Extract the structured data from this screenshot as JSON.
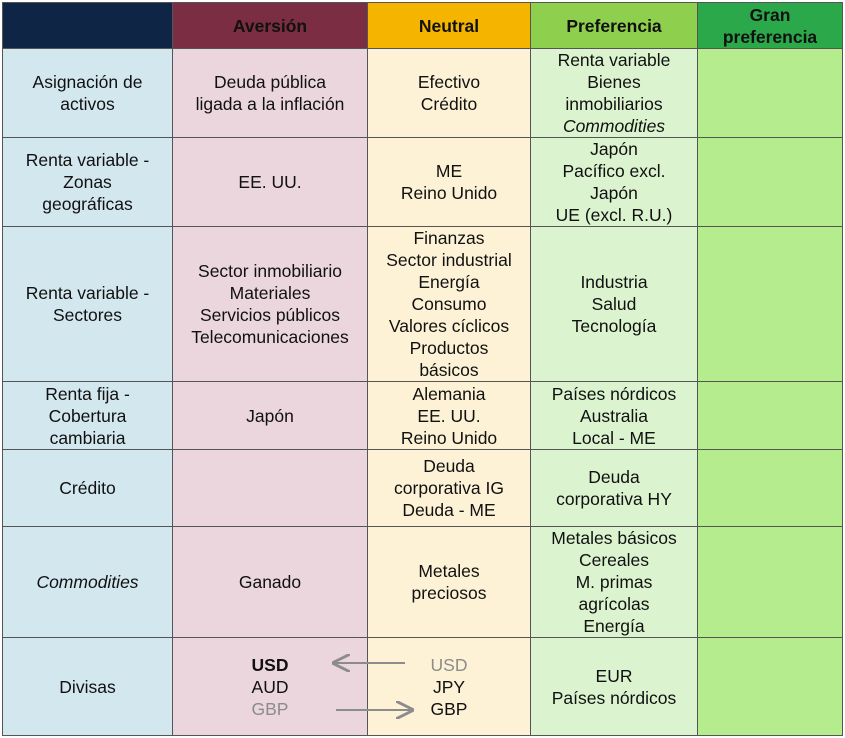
{
  "headers": {
    "aversion": "Aversión",
    "neutral": "Neutral",
    "preference": "Preferencia",
    "strong_preference_line1": "Gran",
    "strong_preference_line2": "preferencia"
  },
  "rows": [
    {
      "label": [
        "Asignación de",
        "activos"
      ],
      "aversion": [
        "Deuda pública",
        "ligada a la inflación"
      ],
      "neutral": [
        "Efectivo",
        "Crédito"
      ],
      "preference": [
        "Renta variable",
        "Bienes",
        "inmobiliarios",
        "Commodities"
      ]
    },
    {
      "label": [
        "Renta variable -",
        "Zonas",
        "geográficas"
      ],
      "aversion": [
        "EE. UU."
      ],
      "neutral": [
        "ME",
        "Reino Unido"
      ],
      "preference": [
        "Japón",
        "Pacífico excl.",
        "Japón",
        "UE (excl. R.U.)"
      ]
    },
    {
      "label": [
        "Renta variable -",
        "Sectores"
      ],
      "aversion": [
        "Sector inmobiliario",
        "Materiales",
        "Servicios públicos",
        "Telecomunicaciones"
      ],
      "neutral": [
        "Finanzas",
        "Sector industrial",
        "Energía",
        "Consumo",
        "Valores cíclicos",
        "Productos",
        "básicos"
      ],
      "preference": [
        "Industria",
        "Salud",
        "Tecnología"
      ]
    },
    {
      "label": [
        "Renta fija -",
        "Cobertura",
        "cambiaria"
      ],
      "aversion": [
        "Japón"
      ],
      "neutral": [
        "Alemania",
        "EE. UU.",
        "Reino Unido"
      ],
      "preference": [
        "Países nórdicos",
        "Australia",
        "Local - ME"
      ]
    },
    {
      "label": [
        "Crédito"
      ],
      "aversion": [],
      "neutral": [
        "Deuda",
        "corporativa IG",
        "Deuda - ME"
      ],
      "preference": [
        "Deuda",
        "corporativa HY"
      ]
    },
    {
      "label": [
        "Commodities"
      ],
      "aversion": [
        "Ganado"
      ],
      "neutral": [
        "Metales",
        "preciosos"
      ],
      "preference": [
        "Metales básicos",
        "Cereales",
        "M. primas",
        "agrícolas",
        "Energía"
      ]
    }
  ],
  "currencies": {
    "label": "Divisas",
    "aversion": [
      "USD",
      "AUD",
      "GBP"
    ],
    "neutral": [
      "USD",
      "JPY",
      "GBP"
    ],
    "preference": [
      "EUR",
      "Países nórdicos"
    ]
  },
  "colors": {
    "header_corner": "#0f2545",
    "header_aversion": "#7b2d43",
    "header_neutral": "#f4b400",
    "header_preference": "#8fcf4e",
    "header_strong_preference": "#2aa84a",
    "row_label": "#d3e7ef",
    "aversion": "#ead6dc",
    "neutral": "#fdf2d5",
    "preference": "#dbf4cf",
    "strong_preference": "#b4ec8e",
    "arrow": "#8c8c8c"
  }
}
